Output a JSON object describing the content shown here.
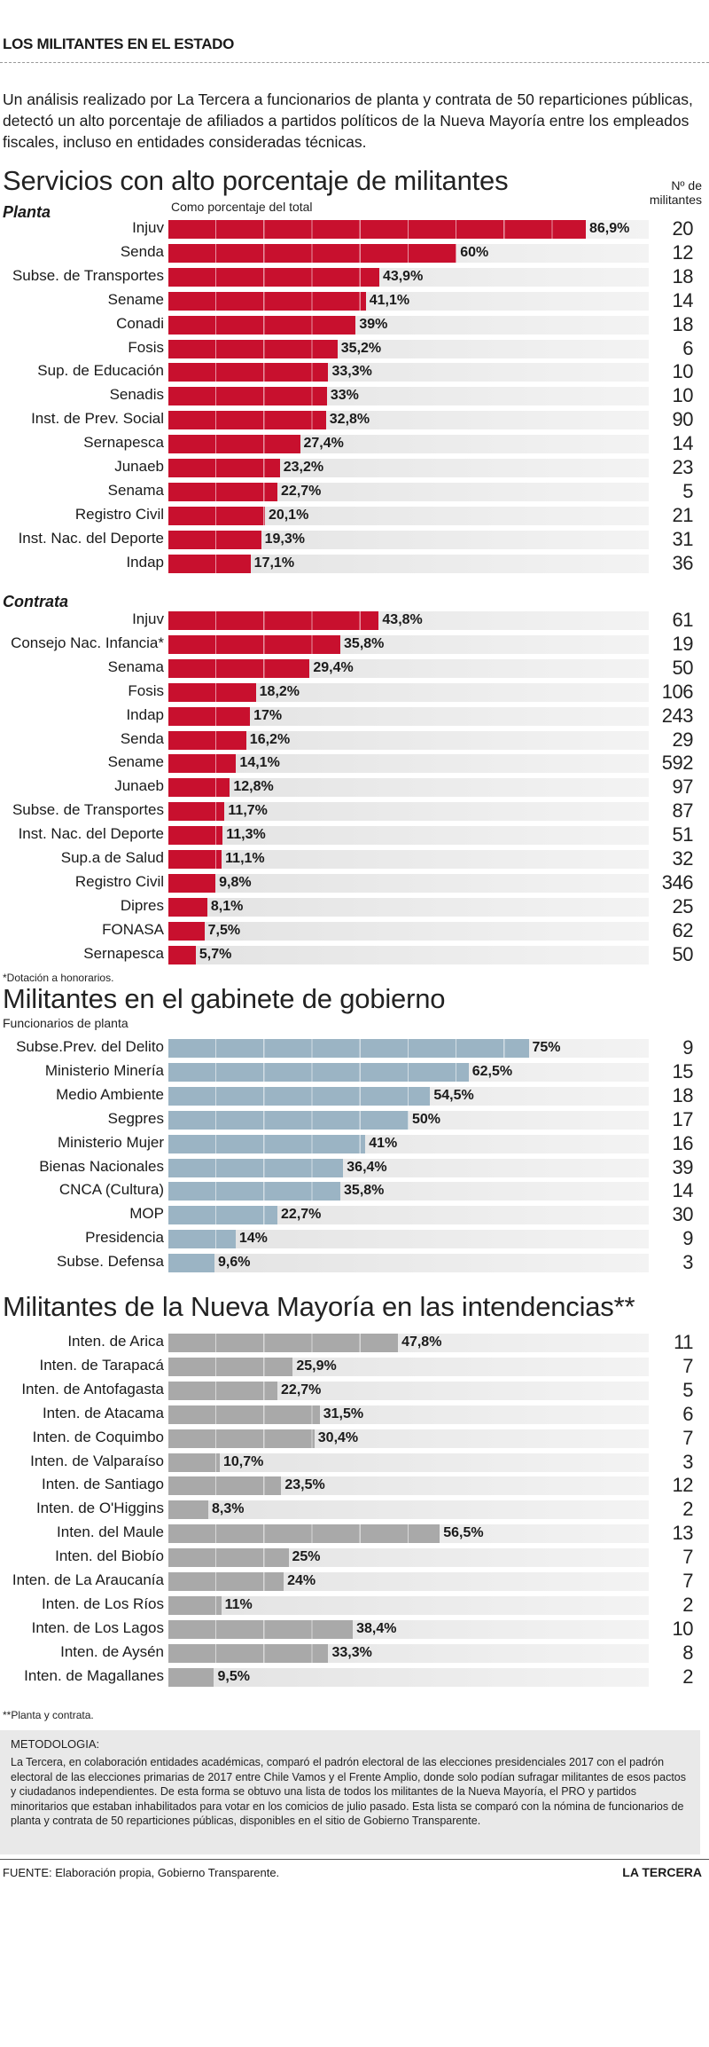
{
  "header": {
    "title": "LOS MILITANTES EN EL ESTADO"
  },
  "intro": "Un análisis realizado por La Tercera a funcionarios de planta y contrata de 50 reparticiones públicas, detectó un alto porcentaje de afiliados a partidos políticos de la Nueva Mayoría entre los empleados fiscales, incluso en entidades consideradas técnicas.",
  "colors": {
    "red": "#c8102e",
    "blue": "#9bb4c4",
    "gray": "#a9a9a9",
    "track": "#e8e8e8"
  },
  "chart_data": [
    {
      "type": "bar",
      "title": "Servicios con alto porcentaje de militantes",
      "subtitle": "Como porcentaje del total",
      "count_label": "Nº de militantes",
      "groups": [
        {
          "name": "Planta",
          "categories": [
            "Injuv",
            "Senda",
            "Subse. de Transportes",
            "Sename",
            "Conadi",
            "Fosis",
            "Sup. de Educación",
            "Senadis",
            "Inst. de Prev. Social",
            "Sernapesca",
            "Junaeb",
            "Senama",
            "Registro Civil",
            "Inst. Nac. del Deporte",
            "Indap"
          ],
          "values": [
            86.9,
            60,
            43.9,
            41.1,
            39,
            35.2,
            33.3,
            33,
            32.8,
            27.4,
            23.2,
            22.7,
            20.1,
            19.3,
            17.1
          ],
          "labels": [
            "86,9%",
            "60%",
            "43,9%",
            "41,1%",
            "39%",
            "35,2%",
            "33,3%",
            "33%",
            "32,8%",
            "27,4%",
            "23,2%",
            "22,7%",
            "20,1%",
            "19,3%",
            "17,1%"
          ],
          "counts": [
            "20",
            "12",
            "18",
            "14",
            "18",
            "6",
            "10",
            "10",
            "90",
            "14",
            "23",
            "5",
            "21",
            "31",
            "36"
          ]
        },
        {
          "name": "Contrata",
          "categories": [
            "Injuv",
            "Consejo Nac. Infancia*",
            "Senama",
            "Fosis",
            "Indap",
            "Senda",
            "Sename",
            "Junaeb",
            "Subse. de Transportes",
            "Inst. Nac. del Deporte",
            "Sup.a de Salud",
            "Registro Civil",
            "Dipres",
            "FONASA",
            "Sernapesca"
          ],
          "values": [
            43.8,
            35.8,
            29.4,
            18.2,
            17,
            16.2,
            14.1,
            12.8,
            11.7,
            11.3,
            11.1,
            9.8,
            8.1,
            7.5,
            5.7
          ],
          "labels": [
            "43,8%",
            "35,8%",
            "29,4%",
            "18,2%",
            "17%",
            "16,2%",
            "14,1%",
            "12,8%",
            "11,7%",
            "11,3%",
            "11,1%",
            "9,8%",
            "8,1%",
            "7,5%",
            "5,7%"
          ],
          "counts": [
            "61",
            "19",
            "50",
            "106",
            "243",
            "29",
            "592",
            "97",
            "87",
            "51",
            "32",
            "346",
            "25",
            "62",
            "50"
          ]
        }
      ],
      "note": "*Dotación a honorarios.",
      "xlim": [
        0,
        100
      ]
    },
    {
      "type": "bar",
      "title": "Militantes en el gabinete de gobierno",
      "subtitle": "Funcionarios de planta",
      "categories": [
        "Subse.Prev. del Delito",
        "Ministerio Minería",
        "Medio Ambiente",
        "Segpres",
        "Ministerio Mujer",
        "Bienas Nacionales",
        "CNCA (Cultura)",
        "MOP",
        "Presidencia",
        "Subse. Defensa"
      ],
      "values": [
        75,
        62.5,
        54.5,
        50,
        41,
        36.4,
        35.8,
        22.7,
        14,
        9.6
      ],
      "labels": [
        "75%",
        "62,5%",
        "54,5%",
        "50%",
        "41%",
        "36,4%",
        "35,8%",
        "22,7%",
        "14%",
        "9,6%"
      ],
      "counts": [
        "9",
        "15",
        "18",
        "17",
        "16",
        "39",
        "14",
        "30",
        "9",
        "3"
      ],
      "xlim": [
        0,
        100
      ]
    },
    {
      "type": "bar",
      "title": "Militantes de la Nueva Mayoría en las intendencias**",
      "categories": [
        "Inten. de Arica",
        "Inten. de Tarapacá",
        "Inten. de Antofagasta",
        "Inten. de Atacama",
        "Inten. de Coquimbo",
        "Inten. de Valparaíso",
        "Inten. de Santiago",
        "Inten. de O'Higgins",
        "Inten. del Maule",
        "Inten. del Biobío",
        "Inten. de La Araucanía",
        "Inten. de Los Ríos",
        "Inten. de Los Lagos",
        "Inten. de Aysén",
        "Inten. de Magallanes"
      ],
      "values": [
        47.8,
        25.9,
        22.7,
        31.5,
        30.4,
        10.7,
        23.5,
        8.3,
        56.5,
        25,
        24,
        11,
        38.4,
        33.3,
        9.5
      ],
      "labels": [
        "47,8%",
        "25,9%",
        "22,7%",
        "31,5%",
        "30,4%",
        "10,7%",
        "23,5%",
        "8,3%",
        "56,5%",
        "25%",
        "24%",
        "11%",
        "38,4%",
        "33,3%",
        "9,5%"
      ],
      "counts": [
        "11",
        "7",
        "5",
        "6",
        "7",
        "3",
        "12",
        "2",
        "13",
        "7",
        "7",
        "2",
        "10",
        "8",
        "2"
      ],
      "note": "**Planta y contrata.",
      "xlim": [
        0,
        100
      ]
    }
  ],
  "methodology": {
    "title": "METODOLOGIA:",
    "text": "La Tercera, en colaboración entidades académicas, comparó el padrón electoral de las elecciones presidenciales 2017 con el padrón electoral de las elecciones primarias de 2017 entre Chile Vamos y el Frente Amplio, donde solo podían sufragar militantes de esos pactos y ciudadanos independientes. De esta forma se obtuvo una lista de todos los militantes de la Nueva Mayoría, el PRO y partidos minoritarios que estaban inhabilitados para votar en los comicios de julio pasado. Esta lista se comparó con la nómina de funcionarios de planta y contrata de 50 reparticiones públicas, disponibles en el sitio de Gobierno Transparente."
  },
  "footer": {
    "source": "FUENTE: Elaboración propia, Gobierno Transparente.",
    "brand": "LA TERCERA"
  }
}
